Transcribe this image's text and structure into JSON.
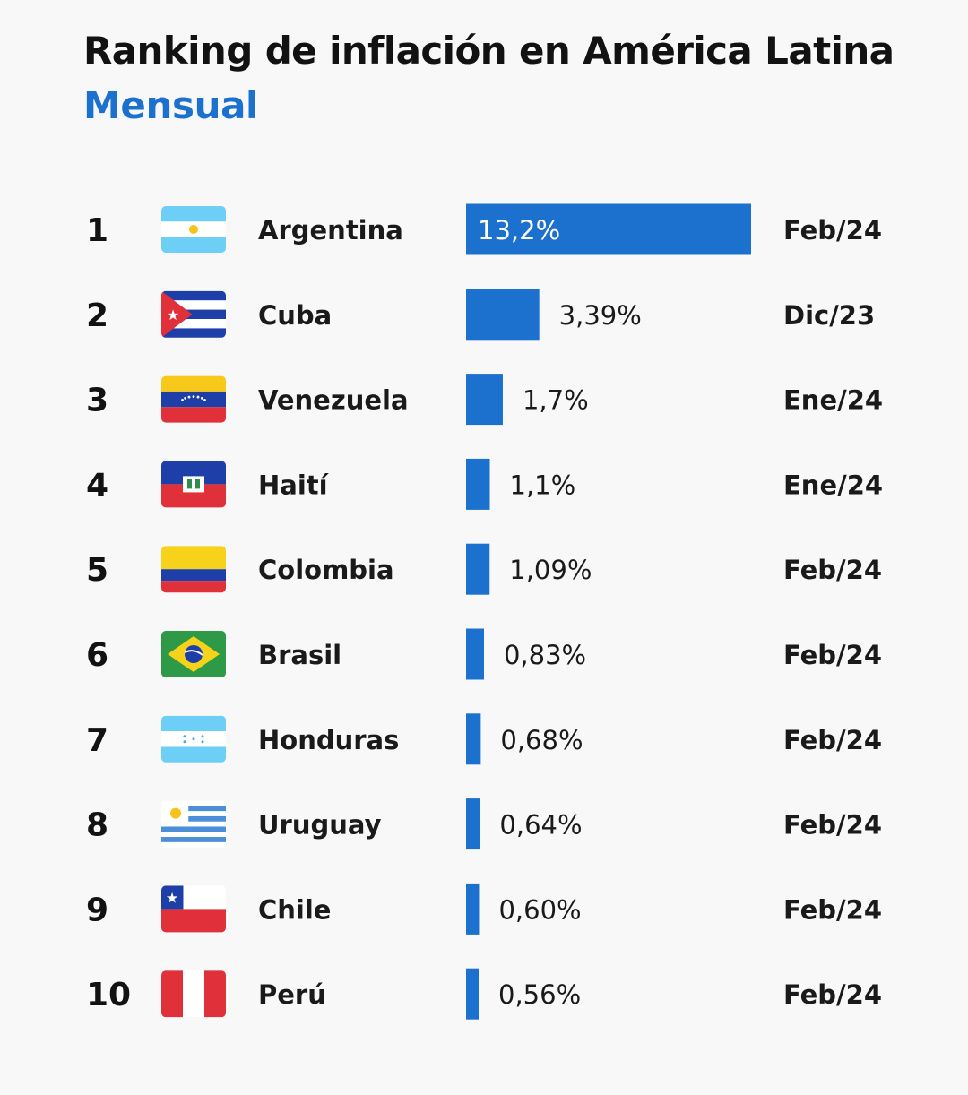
{
  "header": {
    "title": "Ranking de inflación en América Latina",
    "subtitle": "Mensual"
  },
  "colors": {
    "bar": "#1c71cf",
    "subtitle": "#1c71cf",
    "text": "#121212"
  },
  "chart_data": {
    "type": "bar",
    "orientation": "horizontal",
    "title": "Ranking de inflación en América Latina",
    "subtitle": "Mensual",
    "unit": "%",
    "xlim": [
      0,
      13.2
    ],
    "rows": [
      {
        "rank": "1",
        "flag": "argentina-flag-icon",
        "country": "Argentina",
        "value": 13.2,
        "value_label": "13,2%",
        "period": "Feb/24"
      },
      {
        "rank": "2",
        "flag": "cuba-flag-icon",
        "country": "Cuba",
        "value": 3.39,
        "value_label": "3,39%",
        "period": "Dic/23"
      },
      {
        "rank": "3",
        "flag": "venezuela-flag-icon",
        "country": "Venezuela",
        "value": 1.7,
        "value_label": "1,7%",
        "period": "Ene/24"
      },
      {
        "rank": "4",
        "flag": "haiti-flag-icon",
        "country": "Haití",
        "value": 1.1,
        "value_label": "1,1%",
        "period": "Ene/24"
      },
      {
        "rank": "5",
        "flag": "colombia-flag-icon",
        "country": "Colombia",
        "value": 1.09,
        "value_label": "1,09%",
        "period": "Feb/24"
      },
      {
        "rank": "6",
        "flag": "brazil-flag-icon",
        "country": "Brasil",
        "value": 0.83,
        "value_label": "0,83%",
        "period": "Feb/24"
      },
      {
        "rank": "7",
        "flag": "honduras-flag-icon",
        "country": "Honduras",
        "value": 0.68,
        "value_label": "0,68%",
        "period": "Feb/24"
      },
      {
        "rank": "8",
        "flag": "uruguay-flag-icon",
        "country": "Uruguay",
        "value": 0.64,
        "value_label": "0,64%",
        "period": "Feb/24"
      },
      {
        "rank": "9",
        "flag": "chile-flag-icon",
        "country": "Chile",
        "value": 0.6,
        "value_label": "0,60%",
        "period": "Feb/24"
      },
      {
        "rank": "10",
        "flag": "peru-flag-icon",
        "country": "Perú",
        "value": 0.56,
        "value_label": "0,56%",
        "period": "Feb/24"
      }
    ]
  }
}
